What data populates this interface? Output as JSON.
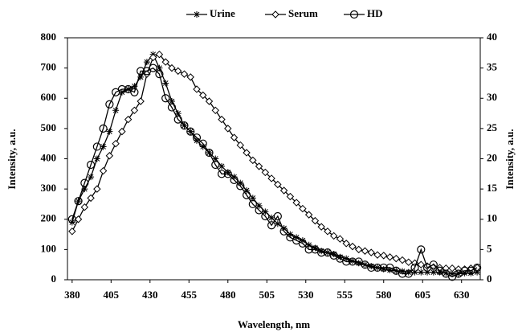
{
  "chart_data": {
    "type": "line",
    "x_label": "Wavelength, nm",
    "y_label": "Intensity, a.u.",
    "y2_label": "Intensity, a.u.",
    "x": [
      380,
      384,
      388,
      392,
      396,
      400,
      404,
      408,
      412,
      416,
      420,
      424,
      428,
      432,
      436,
      440,
      444,
      448,
      452,
      456,
      460,
      464,
      468,
      472,
      476,
      480,
      484,
      488,
      492,
      496,
      500,
      504,
      508,
      512,
      516,
      520,
      524,
      528,
      532,
      536,
      540,
      544,
      548,
      552,
      556,
      560,
      564,
      568,
      572,
      576,
      580,
      584,
      588,
      592,
      596,
      600,
      604,
      608,
      612,
      616,
      620,
      624,
      628,
      632,
      636,
      640
    ],
    "series": [
      {
        "name": "Urine",
        "color": "#000000",
        "marker": "asterisk",
        "values": [
          190,
          260,
          300,
          340,
          400,
          440,
          490,
          560,
          620,
          630,
          640,
          670,
          720,
          745,
          700,
          650,
          590,
          550,
          510,
          490,
          460,
          440,
          420,
          400,
          375,
          355,
          340,
          320,
          295,
          270,
          245,
          225,
          205,
          185,
          170,
          150,
          140,
          130,
          115,
          105,
          95,
          90,
          85,
          75,
          70,
          62,
          55,
          50,
          45,
          40,
          35,
          32,
          30,
          28,
          25,
          25,
          25,
          25,
          25,
          25,
          22,
          20,
          20,
          22,
          22,
          25
        ]
      },
      {
        "name": "Serum",
        "color": "#000000",
        "marker": "diamond",
        "values": [
          160,
          200,
          240,
          270,
          300,
          360,
          410,
          450,
          490,
          530,
          560,
          590,
          680,
          735,
          745,
          720,
          700,
          690,
          680,
          670,
          630,
          610,
          590,
          560,
          530,
          500,
          470,
          445,
          420,
          395,
          375,
          355,
          335,
          315,
          295,
          275,
          255,
          235,
          215,
          195,
          175,
          160,
          145,
          135,
          120,
          110,
          100,
          95,
          90,
          82,
          80,
          75,
          70,
          65,
          58,
          55,
          50,
          45,
          42,
          40,
          38,
          38,
          35,
          35,
          38,
          40
        ]
      },
      {
        "name": "HD",
        "color": "#000000",
        "marker": "circle",
        "axis": "y2",
        "values": [
          10,
          13,
          16,
          19,
          22,
          25,
          29,
          31,
          31.5,
          31.5,
          31,
          34.5,
          34.5,
          35,
          34,
          30,
          28.5,
          26.5,
          25.5,
          24.5,
          23.5,
          22.5,
          21,
          19,
          17.5,
          17.5,
          16.5,
          15.5,
          14,
          12.5,
          11.5,
          10.5,
          9,
          10.5,
          8,
          7,
          6.5,
          6,
          5,
          5,
          4.5,
          4.5,
          4,
          3.5,
          3,
          3,
          3,
          2.5,
          2,
          2,
          2,
          2,
          1.5,
          1,
          1,
          2,
          5,
          2,
          2.5,
          1.5,
          1,
          0.5,
          1,
          1.5,
          1.5,
          2
        ]
      }
    ],
    "xlim": [
      377,
      642
    ],
    "xticks": [
      380,
      405,
      430,
      455,
      480,
      505,
      530,
      555,
      580,
      605,
      630
    ],
    "ylim": [
      0,
      800
    ],
    "yticks": [
      0,
      100,
      200,
      300,
      400,
      500,
      600,
      700,
      800
    ],
    "y2lim": [
      0,
      40
    ],
    "y2ticks": [
      0,
      5,
      10,
      15,
      20,
      25,
      30,
      35,
      40
    ],
    "legend": "top"
  }
}
